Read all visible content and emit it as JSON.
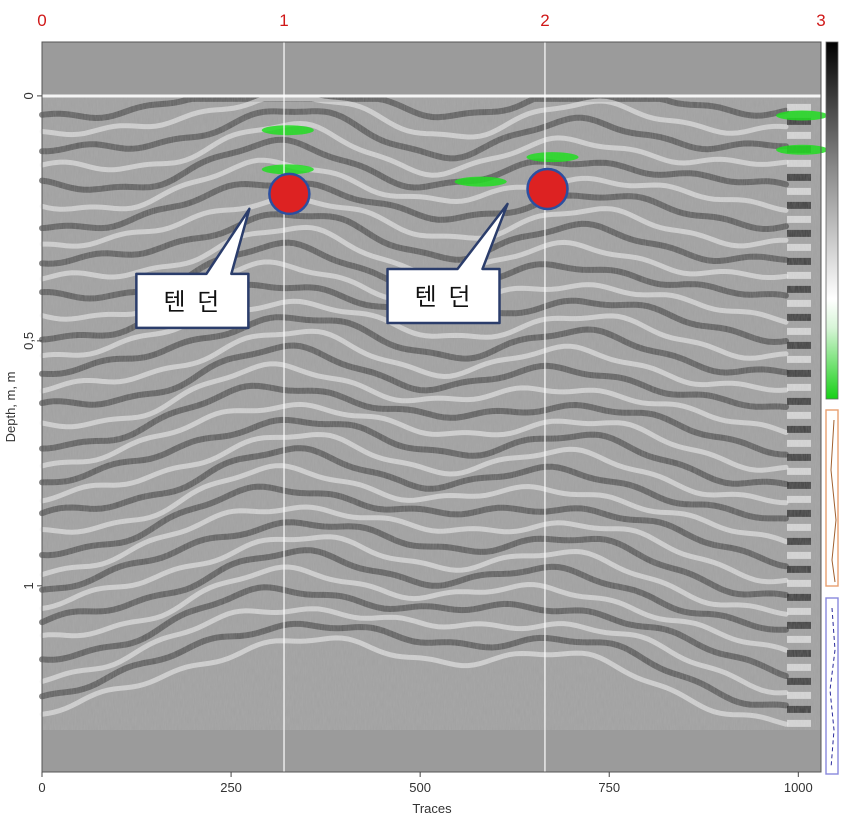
{
  "chart_data": {
    "type": "heatmap",
    "xlabel": "Traces",
    "ylabel": "Depth, m, m",
    "xlim": [
      0,
      1030
    ],
    "ylim": [
      -0.11,
      1.38
    ],
    "x_ticks": [
      0,
      250,
      500,
      750,
      1000
    ],
    "x_tick_labels": [
      "0",
      "250",
      "500",
      "750",
      "1000"
    ],
    "y_ticks": [
      0,
      0.5,
      1
    ],
    "y_tick_labels": [
      "0",
      "0,5",
      "1"
    ],
    "data_extent": {
      "depth_top": 0,
      "depth_bottom": 1.29
    },
    "markers": [
      {
        "label": "0",
        "trace": 0
      },
      {
        "label": "1",
        "trace": 320
      },
      {
        "label": "2",
        "trace": 665
      },
      {
        "label": "3",
        "trace": 1030
      }
    ],
    "annotations": [
      {
        "text": "텐 던",
        "trace": 335,
        "depth": 0.2
      },
      {
        "text": "텐 던",
        "trace": 675,
        "depth": 0.19
      }
    ],
    "green_reflections": [
      {
        "trace": 325,
        "depth": 0.07
      },
      {
        "trace": 325,
        "depth": 0.15
      },
      {
        "trace": 580,
        "depth": 0.175
      },
      {
        "trace": 675,
        "depth": 0.125
      },
      {
        "trace": 1005,
        "depth": 0.04
      },
      {
        "trace": 1005,
        "depth": 0.11
      }
    ],
    "colors": {
      "background": "#9a9a9a",
      "highlight": "#22dd22",
      "marker_text": "#d01818",
      "target_fill": "#dd2222",
      "target_stroke": "#2c4fa0",
      "callout_stroke": "#2b3d6b"
    },
    "colorbar": [
      "black",
      "gray",
      "white",
      "green"
    ],
    "grid": false
  }
}
